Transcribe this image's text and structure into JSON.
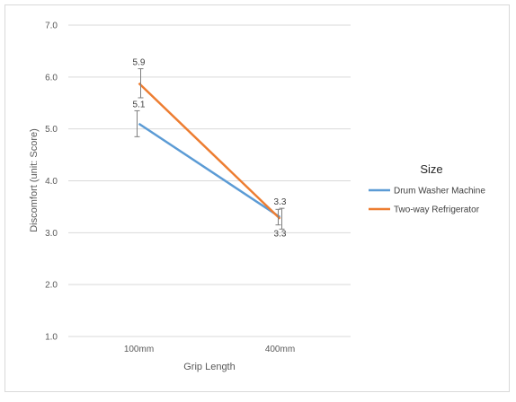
{
  "chart_data": {
    "type": "line",
    "categories": [
      "100mm",
      "400mm"
    ],
    "xlabel": "Grip Length",
    "ylabel": "Discomfort (unit: Score)",
    "ylim": [
      1.0,
      7.0
    ],
    "yticks": [
      "1.0",
      "2.0",
      "3.0",
      "4.0",
      "5.0",
      "6.0",
      "7.0"
    ],
    "grid": true,
    "legend": {
      "title": "Size",
      "position": "right"
    },
    "series": [
      {
        "name": "Drum Washer Machine",
        "color": "#5b9bd5",
        "values": [
          5.1,
          3.3
        ],
        "errors": [
          0.25,
          0.15
        ],
        "labels": [
          "5.1",
          "3.3"
        ],
        "label_side": [
          "above",
          "below"
        ]
      },
      {
        "name": "Two-way Refrigerator",
        "color": "#ed7d31",
        "values": [
          5.88,
          3.27
        ],
        "errors": [
          0.28,
          0.2
        ],
        "labels": [
          "5.9",
          "3.3"
        ],
        "label_side": [
          "above",
          "above"
        ]
      }
    ]
  }
}
